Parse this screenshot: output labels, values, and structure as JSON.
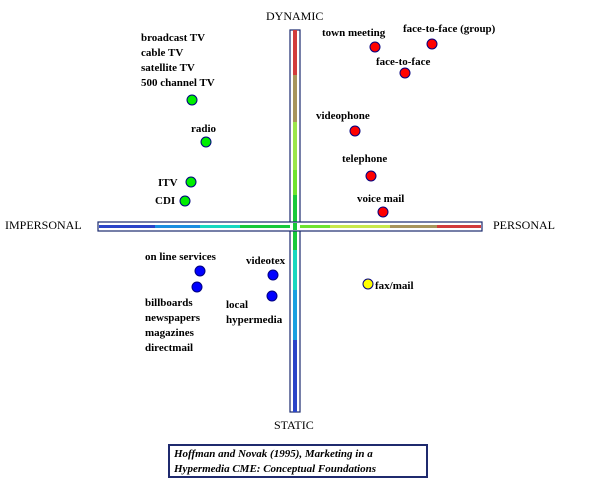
{
  "axes": {
    "top": "DYNAMIC",
    "bottom": "STATIC",
    "left": "IMPERSONAL",
    "right": "PERSONAL"
  },
  "media": [
    {
      "id": "face-to-face-group",
      "label": "face-to-face (group)",
      "color": "#ff0000"
    },
    {
      "id": "town-meeting",
      "label": "town meeting",
      "color": "#ff0000"
    },
    {
      "id": "face-to-face",
      "label": "face-to-face",
      "color": "#ff0000"
    },
    {
      "id": "videophone",
      "label": "videophone",
      "color": "#ff0000"
    },
    {
      "id": "telephone",
      "label": "telephone",
      "color": "#ff0000"
    },
    {
      "id": "voice-mail",
      "label": "voice mail",
      "color": "#ff0000"
    },
    {
      "id": "fax-mail",
      "label": "fax/mail",
      "color": "#ffff00"
    },
    {
      "id": "broadcast",
      "label": [
        "broadcast TV",
        "cable TV",
        "satellite TV",
        "500 channel TV"
      ],
      "color": "#00ee00"
    },
    {
      "id": "radio",
      "label": "radio",
      "color": "#00ee00"
    },
    {
      "id": "itv",
      "label": "ITV",
      "color": "#00ee00"
    },
    {
      "id": "cdi",
      "label": "CDI",
      "color": "#00ee00"
    },
    {
      "id": "online-services",
      "label": "on line services",
      "color": "#0000ff"
    },
    {
      "id": "print",
      "label": [
        "billboards",
        "newspapers",
        "magazines",
        "directmail"
      ],
      "color": "#0000ff"
    },
    {
      "id": "videotex",
      "label": "videotex",
      "color": "#0000ff"
    },
    {
      "id": "local-hypermedia",
      "label": [
        "local",
        "hypermedia"
      ],
      "color": "#0000ff"
    }
  ],
  "citation": {
    "line1": "Hoffman and Novak (1995), Marketing in a",
    "line2": "Hypermedia CME: Conceptual Foundations"
  }
}
